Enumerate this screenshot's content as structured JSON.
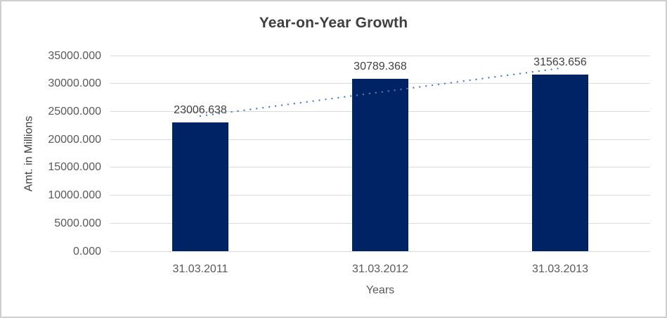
{
  "chart_data": {
    "type": "bar",
    "title": "Year-on-Year Growth",
    "xlabel": "Years",
    "ylabel": "Amt. in Millions",
    "categories": [
      "31.03.2011",
      "31.03.2012",
      "31.03.2013"
    ],
    "values": [
      23006.638,
      30789.368,
      31563.656
    ],
    "data_labels": [
      "23006.638",
      "30789.368",
      "31563.656"
    ],
    "ylim": [
      0,
      35000
    ],
    "ytick_step": 5000,
    "ytick_labels": [
      "0.000",
      "5000.000",
      "10000.000",
      "15000.000",
      "20000.000",
      "25000.000",
      "30000.000",
      "35000.000"
    ],
    "grid": "horizontal",
    "legend": "none",
    "trendline": {
      "type": "linear",
      "style": "dotted"
    },
    "colors": {
      "bar_fill": "#002365",
      "trendline": "#4a7ec1",
      "gridline": "#d9d9d9",
      "tick_text": "#595959",
      "title_text": "#3f3f3f",
      "data_label_text": "#404040",
      "frame_border": "#cfcfcf",
      "background": "#ffffff"
    }
  }
}
